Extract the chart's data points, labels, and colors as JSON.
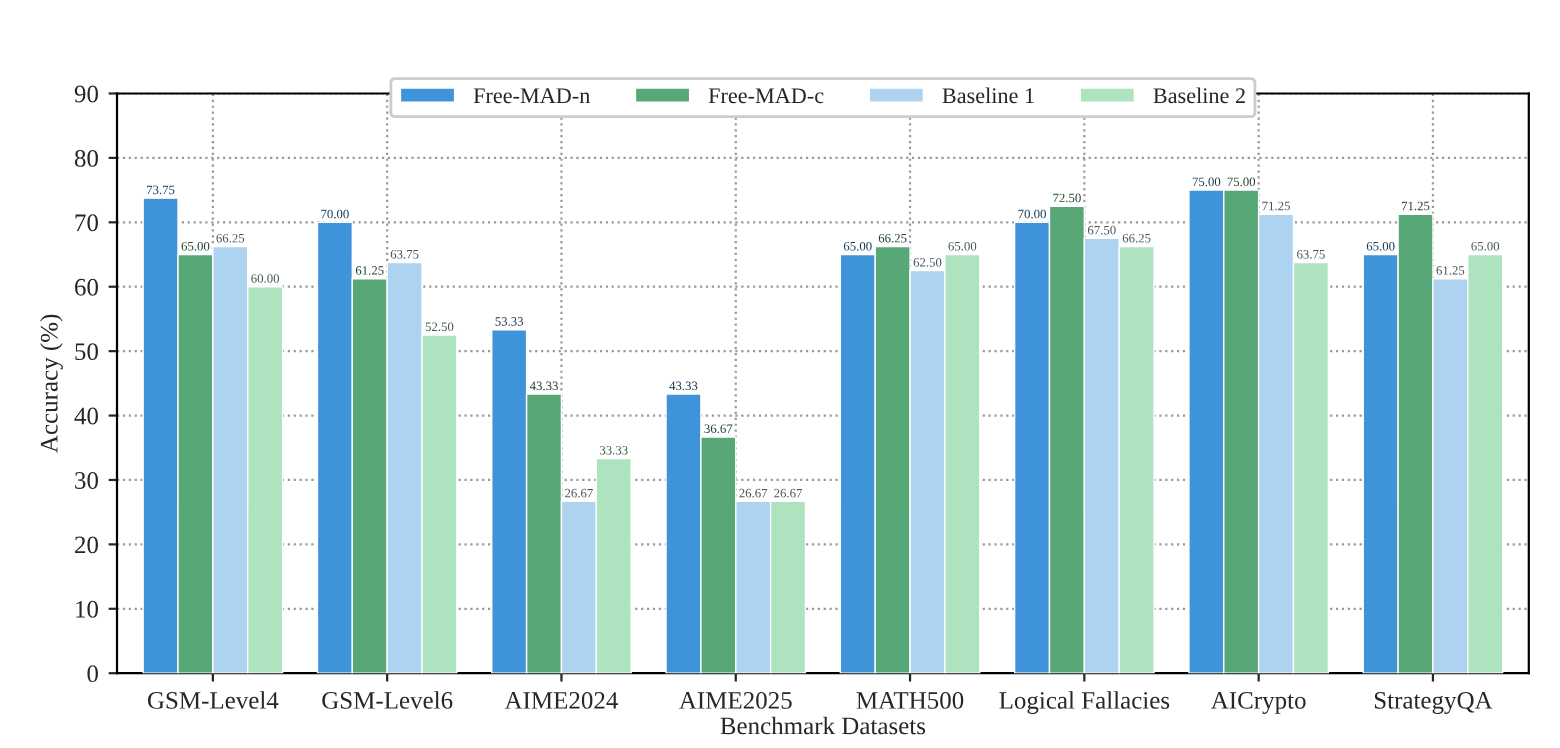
{
  "chart_data": {
    "type": "bar",
    "xlabel": "Benchmark Datasets",
    "ylabel": "Accuracy (%)",
    "categories": [
      "GSM-Level4",
      "GSM-Level6",
      "AIME2024",
      "AIME2025",
      "MATH500",
      "Logical Fallacies",
      "AICrypto",
      "StrategyQA"
    ],
    "series": [
      {
        "name": "Free-MAD-n",
        "color": "#3f94d9",
        "values": [
          73.75,
          70.0,
          53.33,
          43.33,
          65.0,
          70.0,
          75.0,
          65.0
        ],
        "value_labels": [
          "73.75",
          "70.00",
          "53.33",
          "43.33",
          "65.00",
          "70.00",
          "75.00",
          "65.00"
        ]
      },
      {
        "name": "Free-MAD-c",
        "color": "#58a877",
        "values": [
          65.0,
          61.25,
          43.33,
          36.67,
          66.25,
          72.5,
          75.0,
          71.25
        ],
        "value_labels": [
          "65.00",
          "61.25",
          "43.33",
          "36.67",
          "66.25",
          "72.50",
          "75.00",
          "71.25"
        ]
      },
      {
        "name": "Baseline 1",
        "color": "#aed3f0",
        "values": [
          66.25,
          63.75,
          26.67,
          26.67,
          62.5,
          67.5,
          71.25,
          61.25
        ],
        "value_labels": [
          "66.25",
          "63.75",
          "26.67",
          "26.67",
          "62.50",
          "67.50",
          "71.25",
          "61.25"
        ]
      },
      {
        "name": "Baseline 2",
        "color": "#ade3bf",
        "values": [
          60.0,
          52.5,
          33.33,
          26.67,
          65.0,
          66.25,
          63.75,
          65.0
        ],
        "value_labels": [
          "60.00",
          "52.50",
          "33.33",
          "26.67",
          "65.00",
          "66.25",
          "63.75",
          "65.00"
        ]
      }
    ],
    "ylim": [
      0,
      90
    ],
    "yticks": [
      0,
      10,
      20,
      30,
      40,
      50,
      60,
      70,
      80,
      90
    ],
    "grid": true,
    "legend": "top"
  }
}
